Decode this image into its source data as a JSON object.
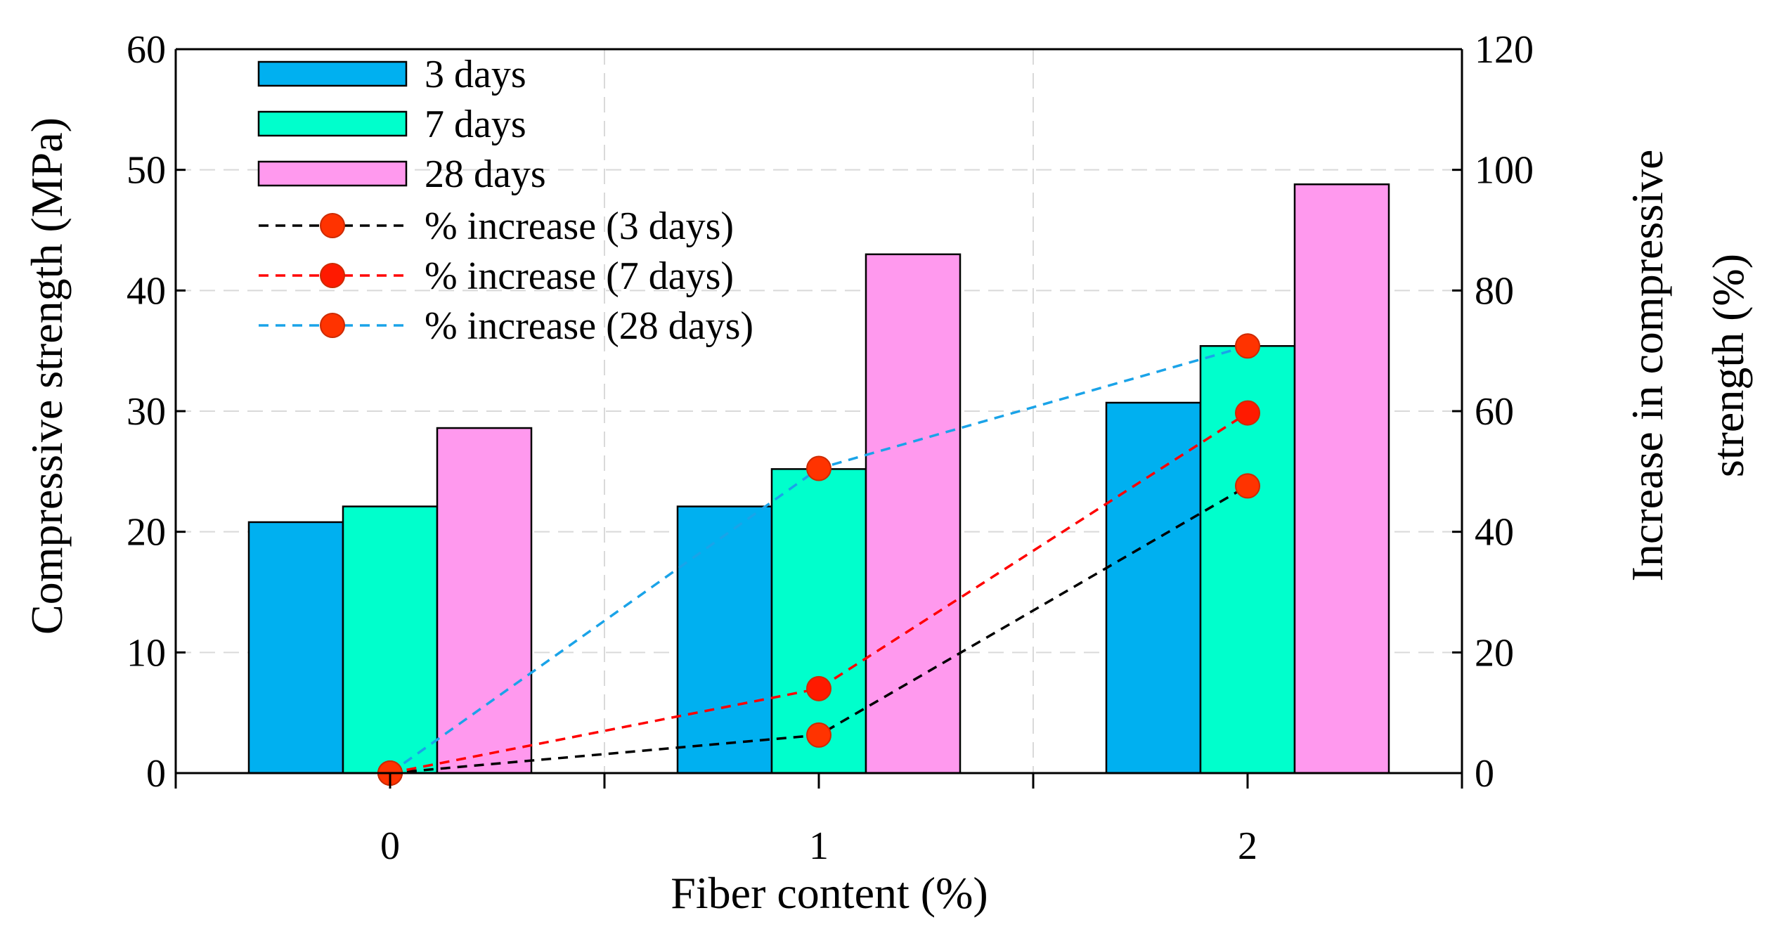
{
  "chart_data": {
    "type": "bar",
    "title": "",
    "xlabel": "Fiber content (%)",
    "ylabel": "Compressive strength (MPa)",
    "y2label": [
      "Increase in compressive",
      "strength (%)"
    ],
    "categories": [
      "0",
      "1",
      "2"
    ],
    "ylim": [
      0,
      60
    ],
    "y2lim": [
      0,
      120
    ],
    "yticks": [
      "0",
      "10",
      "20",
      "30",
      "40",
      "50",
      "60"
    ],
    "y2ticks": [
      "0",
      "20",
      "40",
      "60",
      "80",
      "100",
      "120"
    ],
    "grid": true,
    "legend_position": "top-left",
    "series": [
      {
        "name": "3 days",
        "kind": "bar",
        "axis": "left",
        "color": "#00B0F0",
        "values": [
          20.8,
          22.1,
          30.7
        ]
      },
      {
        "name": "7 days",
        "kind": "bar",
        "axis": "left",
        "color": "#00FFCC",
        "values": [
          22.1,
          25.2,
          35.4
        ]
      },
      {
        "name": "28 days",
        "kind": "bar",
        "axis": "left",
        "color": "#FF99EE",
        "values": [
          28.6,
          43.0,
          48.8
        ]
      },
      {
        "name": "% increase (3 days)",
        "kind": "line",
        "axis": "right",
        "color": "#000000",
        "marker_color": "#FF3300",
        "values": [
          0,
          6.3,
          47.6
        ]
      },
      {
        "name": "% increase (7 days)",
        "kind": "line",
        "axis": "right",
        "color": "#FF0000",
        "marker_color": "#FF1A00",
        "values": [
          0,
          14.0,
          59.7
        ]
      },
      {
        "name": "% increase (28 days)",
        "kind": "line",
        "axis": "right",
        "color": "#1AA3E8",
        "marker_color": "#FF3300",
        "values": [
          0,
          50.5,
          70.8
        ]
      }
    ]
  }
}
